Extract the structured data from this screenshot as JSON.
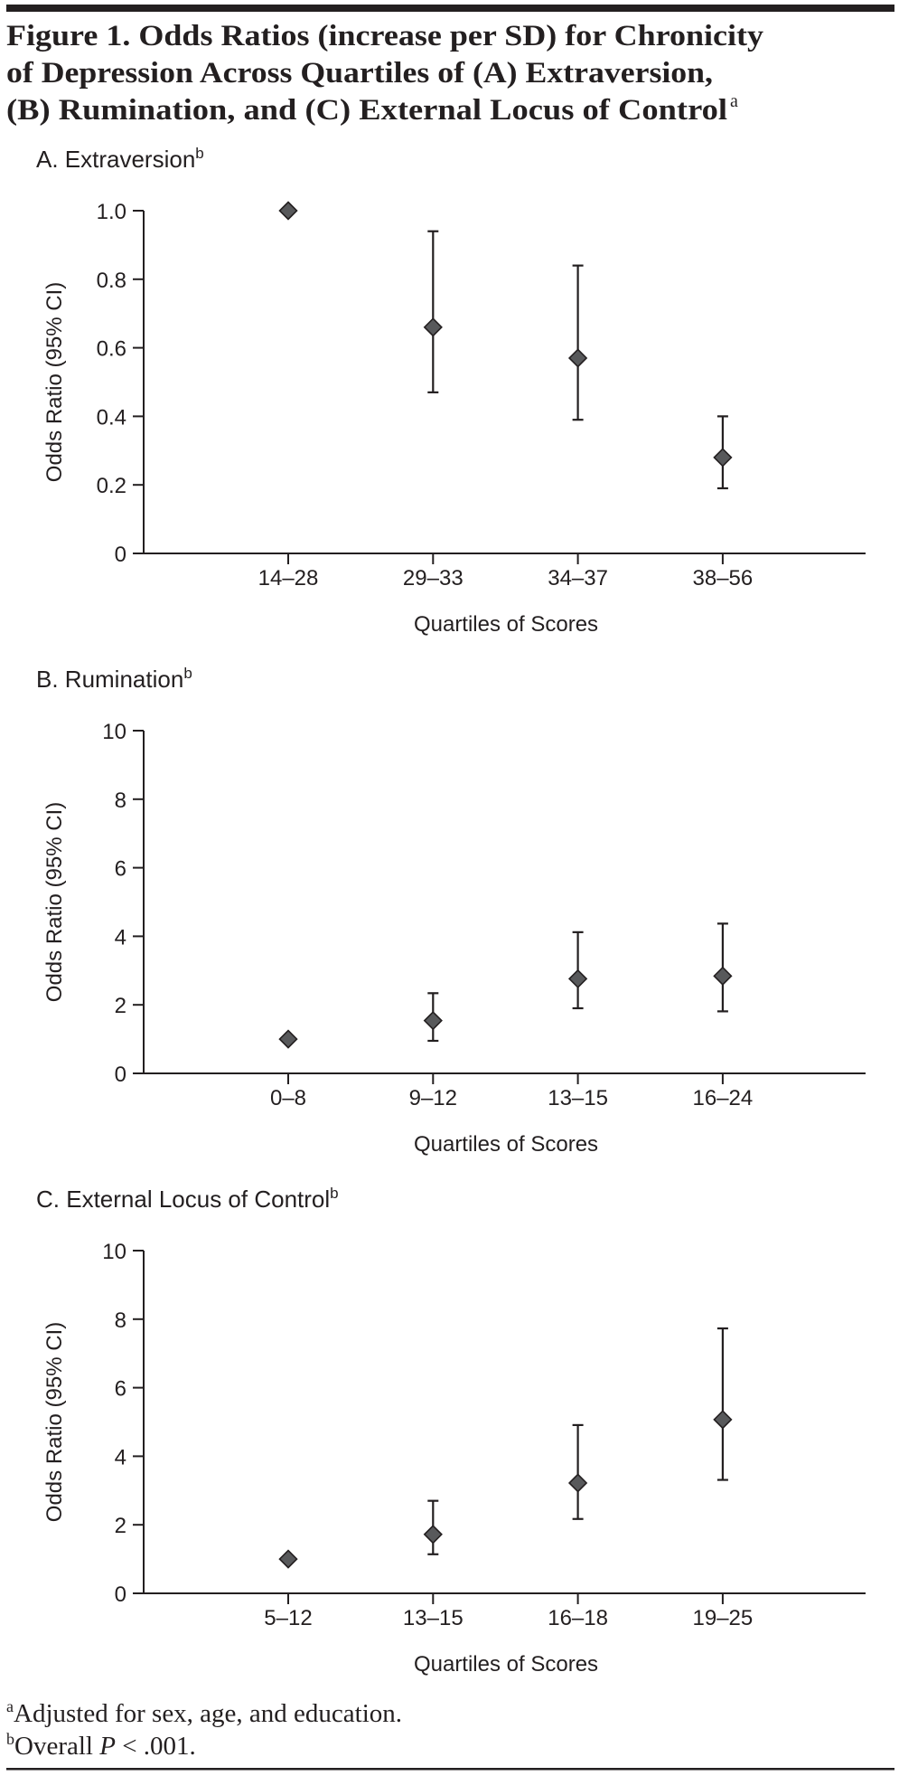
{
  "figure": {
    "title_lines": [
      "Figure 1. Odds Ratios (increase per SD) for Chronicity",
      "of Depression Across Quartiles of (A) Extraversion,",
      "(B) Rumination, and (C) External Locus of Control"
    ],
    "title_superscript": "a",
    "footnotes": [
      {
        "mark": "a",
        "text": "Adjusted for sex, age, and education."
      },
      {
        "mark": "b",
        "text_before": "Overall ",
        "italic": "P",
        "text_after": " < .001."
      }
    ]
  },
  "colors": {
    "marker_fill": "#58595b",
    "ink": "#231f20"
  },
  "chart_data": [
    {
      "type": "scatter",
      "title": "A. Extraversion",
      "title_superscript": "b",
      "xlabel": "Quartiles of Scores",
      "ylabel": "Odds Ratio (95% CI)",
      "categories": [
        "14–28",
        "29–33",
        "34–37",
        "38–56"
      ],
      "values": [
        1.0,
        0.66,
        0.57,
        0.28
      ],
      "ci_lower": [
        null,
        0.47,
        0.39,
        0.19
      ],
      "ci_upper": [
        null,
        0.94,
        0.84,
        0.4
      ],
      "ylim": [
        0,
        1.0
      ],
      "yticks": [
        0,
        0.2,
        0.4,
        0.6,
        0.8,
        1.0
      ],
      "ytick_labels": [
        "0",
        "0.2",
        "0.4",
        "0.6",
        "0.8",
        "1.0"
      ],
      "grid": false
    },
    {
      "type": "scatter",
      "title": "B. Rumination",
      "title_superscript": "b",
      "xlabel": "Quartiles of Scores",
      "ylabel": "Odds Ratio (95% CI)",
      "categories": [
        "0–8",
        "9–12",
        "13–15",
        "16–24"
      ],
      "values": [
        1.0,
        1.54,
        2.76,
        2.84
      ],
      "ci_lower": [
        null,
        0.95,
        1.9,
        1.81
      ],
      "ci_upper": [
        null,
        2.34,
        4.12,
        4.37
      ],
      "ylim": [
        0,
        10
      ],
      "yticks": [
        0,
        2,
        4,
        6,
        8,
        10
      ],
      "ytick_labels": [
        "0",
        "2",
        "4",
        "6",
        "8",
        "10"
      ],
      "grid": false
    },
    {
      "type": "scatter",
      "title": "C. External Locus of Control",
      "title_superscript": "b",
      "xlabel": "Quartiles of Scores",
      "ylabel": "Odds Ratio (95% CI)",
      "categories": [
        "5–12",
        "13–15",
        "16–18",
        "19–25"
      ],
      "values": [
        1.0,
        1.72,
        3.22,
        5.07
      ],
      "ci_lower": [
        null,
        1.14,
        2.17,
        3.31
      ],
      "ci_upper": [
        null,
        2.7,
        4.91,
        7.73
      ],
      "ylim": [
        0,
        10
      ],
      "yticks": [
        0,
        2,
        4,
        6,
        8,
        10
      ],
      "ytick_labels": [
        "0",
        "2",
        "4",
        "6",
        "8",
        "10"
      ],
      "grid": false
    }
  ]
}
